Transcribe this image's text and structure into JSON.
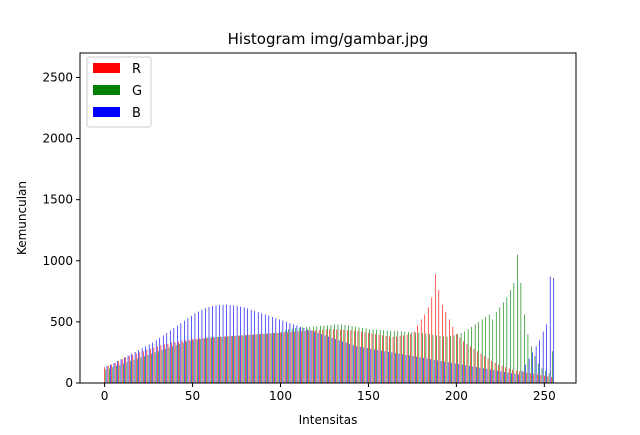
{
  "chart_data": {
    "type": "bar",
    "title": "Histogram img/gambar.jpg",
    "xlabel": "Intensitas",
    "ylabel": "Kemunculan",
    "xlim": [
      -14,
      268
    ],
    "ylim": [
      0,
      2700
    ],
    "xticks": [
      0,
      50,
      100,
      150,
      200,
      250
    ],
    "yticks": [
      0,
      500,
      1000,
      1500,
      2000,
      2500
    ],
    "grid": false,
    "legend_position": "top-left",
    "bin_step": 2,
    "series": [
      {
        "name": "R",
        "color": "#ff0000",
        "x": [
          0,
          2,
          4,
          6,
          8,
          10,
          12,
          14,
          16,
          18,
          20,
          22,
          24,
          26,
          28,
          30,
          32,
          34,
          36,
          38,
          40,
          42,
          44,
          46,
          48,
          50,
          52,
          54,
          56,
          58,
          60,
          62,
          64,
          66,
          68,
          70,
          72,
          74,
          76,
          78,
          80,
          82,
          84,
          86,
          88,
          90,
          92,
          94,
          96,
          98,
          100,
          102,
          104,
          106,
          108,
          110,
          112,
          114,
          116,
          118,
          120,
          122,
          124,
          126,
          128,
          130,
          132,
          134,
          136,
          138,
          140,
          142,
          144,
          146,
          148,
          150,
          152,
          154,
          156,
          158,
          160,
          162,
          164,
          166,
          168,
          170,
          172,
          174,
          176,
          178,
          180,
          182,
          184,
          186,
          188,
          190,
          192,
          194,
          196,
          198,
          200,
          202,
          204,
          206,
          208,
          210,
          212,
          214,
          216,
          218,
          220,
          222,
          224,
          226,
          228,
          230,
          232,
          234,
          236,
          238,
          240,
          242,
          244,
          246,
          248,
          250,
          252,
          254
        ],
        "values": [
          130,
          140,
          150,
          165,
          180,
          195,
          210,
          220,
          230,
          240,
          250,
          260,
          270,
          280,
          290,
          300,
          310,
          315,
          320,
          330,
          335,
          340,
          345,
          350,
          355,
          360,
          362,
          365,
          368,
          370,
          372,
          374,
          376,
          378,
          380,
          382,
          384,
          386,
          388,
          390,
          392,
          394,
          396,
          398,
          400,
          402,
          404,
          406,
          408,
          410,
          412,
          414,
          416,
          418,
          420,
          422,
          424,
          426,
          428,
          430,
          432,
          434,
          436,
          438,
          440,
          440,
          438,
          436,
          434,
          432,
          430,
          428,
          425,
          420,
          415,
          410,
          405,
          400,
          395,
          390,
          385,
          380,
          378,
          380,
          385,
          390,
          395,
          400,
          420,
          470,
          520,
          560,
          620,
          700,
          890,
          760,
          640,
          580,
          520,
          460,
          400,
          370,
          340,
          320,
          300,
          280,
          260,
          240,
          220,
          200,
          180,
          165,
          150,
          140,
          130,
          120,
          110,
          100,
          95,
          90,
          85,
          80,
          75,
          70,
          65,
          60,
          55,
          50
        ]
      },
      {
        "name": "G",
        "color": "#008000",
        "x": [
          0,
          2,
          4,
          6,
          8,
          10,
          12,
          14,
          16,
          18,
          20,
          22,
          24,
          26,
          28,
          30,
          32,
          34,
          36,
          38,
          40,
          42,
          44,
          46,
          48,
          50,
          52,
          54,
          56,
          58,
          60,
          62,
          64,
          66,
          68,
          70,
          72,
          74,
          76,
          78,
          80,
          82,
          84,
          86,
          88,
          90,
          92,
          94,
          96,
          98,
          100,
          102,
          104,
          106,
          108,
          110,
          112,
          114,
          116,
          118,
          120,
          122,
          124,
          126,
          128,
          130,
          132,
          134,
          136,
          138,
          140,
          142,
          144,
          146,
          148,
          150,
          152,
          154,
          156,
          158,
          160,
          162,
          164,
          166,
          168,
          170,
          172,
          174,
          176,
          178,
          180,
          182,
          184,
          186,
          188,
          190,
          192,
          194,
          196,
          198,
          200,
          202,
          204,
          206,
          208,
          210,
          212,
          214,
          216,
          218,
          220,
          222,
          224,
          226,
          228,
          230,
          232,
          234,
          236,
          238,
          240,
          242,
          244,
          246,
          248,
          250,
          252,
          254
        ],
        "values": [
          110,
          120,
          130,
          140,
          150,
          160,
          170,
          180,
          190,
          200,
          210,
          220,
          230,
          240,
          250,
          260,
          270,
          280,
          290,
          300,
          310,
          320,
          330,
          340,
          345,
          350,
          355,
          360,
          365,
          370,
          372,
          374,
          376,
          378,
          380,
          382,
          384,
          386,
          388,
          390,
          392,
          394,
          396,
          398,
          400,
          402,
          404,
          406,
          408,
          410,
          420,
          430,
          440,
          445,
          450,
          452,
          455,
          458,
          460,
          462,
          465,
          468,
          470,
          472,
          475,
          478,
          480,
          478,
          475,
          470,
          465,
          460,
          455,
          450,
          445,
          440,
          438,
          436,
          434,
          432,
          430,
          428,
          426,
          424,
          422,
          420,
          418,
          416,
          414,
          412,
          410,
          405,
          400,
          395,
          390,
          385,
          380,
          380,
          385,
          390,
          400,
          410,
          420,
          440,
          460,
          480,
          500,
          520,
          540,
          560,
          520,
          580,
          620,
          660,
          700,
          760,
          820,
          1050,
          820,
          560,
          400,
          300,
          220,
          160,
          120,
          100,
          80,
          260
        ]
      },
      {
        "name": "B",
        "color": "#0000ff",
        "x": [
          0,
          2,
          4,
          6,
          8,
          10,
          12,
          14,
          16,
          18,
          20,
          22,
          24,
          26,
          28,
          30,
          32,
          34,
          36,
          38,
          40,
          42,
          44,
          46,
          48,
          50,
          52,
          54,
          56,
          58,
          60,
          62,
          64,
          66,
          68,
          70,
          72,
          74,
          76,
          78,
          80,
          82,
          84,
          86,
          88,
          90,
          92,
          94,
          96,
          98,
          100,
          102,
          104,
          106,
          108,
          110,
          112,
          114,
          116,
          118,
          120,
          122,
          124,
          126,
          128,
          130,
          132,
          134,
          136,
          138,
          140,
          142,
          144,
          146,
          148,
          150,
          152,
          154,
          156,
          158,
          160,
          162,
          164,
          166,
          168,
          170,
          172,
          174,
          176,
          178,
          180,
          182,
          184,
          186,
          188,
          190,
          192,
          194,
          196,
          198,
          200,
          202,
          204,
          206,
          208,
          210,
          212,
          214,
          216,
          218,
          220,
          222,
          224,
          226,
          228,
          230,
          232,
          234,
          236,
          238,
          240,
          242,
          244,
          246,
          248,
          250,
          252,
          254
        ],
        "values": [
          140,
          150,
          165,
          180,
          195,
          210,
          225,
          240,
          255,
          270,
          285,
          300,
          315,
          330,
          350,
          370,
          390,
          410,
          430,
          450,
          470,
          490,
          510,
          530,
          550,
          570,
          585,
          600,
          612,
          622,
          630,
          635,
          638,
          640,
          640,
          638,
          635,
          630,
          625,
          618,
          610,
          600,
          590,
          580,
          570,
          560,
          550,
          540,
          530,
          520,
          510,
          500,
          490,
          480,
          470,
          460,
          450,
          440,
          430,
          420,
          410,
          400,
          390,
          380,
          370,
          360,
          350,
          340,
          330,
          320,
          310,
          300,
          295,
          290,
          285,
          280,
          275,
          270,
          265,
          260,
          255,
          250,
          245,
          240,
          235,
          230,
          225,
          220,
          215,
          210,
          205,
          200,
          195,
          190,
          185,
          180,
          175,
          170,
          165,
          160,
          155,
          150,
          145,
          140,
          135,
          130,
          125,
          120,
          115,
          110,
          105,
          100,
          95,
          90,
          85,
          80,
          75,
          70,
          100,
          150,
          200,
          250,
          300,
          350,
          420,
          480,
          870,
          860
        ]
      }
    ]
  }
}
